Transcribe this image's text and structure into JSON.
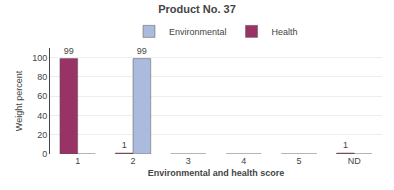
{
  "chart_data": {
    "type": "bar",
    "title": "Product No. 37",
    "xlabel": "Environmental and health score",
    "ylabel": "Weight percent",
    "categories": [
      "1",
      "2",
      "3",
      "4",
      "5",
      "ND"
    ],
    "series": [
      {
        "name": "Health",
        "color": "#993366",
        "values": [
          99,
          1,
          0,
          0,
          0,
          1
        ],
        "value_labels": [
          "99",
          "1",
          null,
          null,
          null,
          "1"
        ]
      },
      {
        "name": "Environmental",
        "color": "#AABBDD",
        "values": [
          0,
          99,
          0,
          0,
          0,
          0
        ],
        "value_labels": [
          null,
          "99",
          null,
          null,
          null,
          null
        ]
      }
    ],
    "ylim": [
      0,
      110
    ],
    "yticks": [
      0,
      20,
      40,
      60,
      80,
      100
    ],
    "grid": true,
    "legend": "top",
    "data_labels": true
  }
}
